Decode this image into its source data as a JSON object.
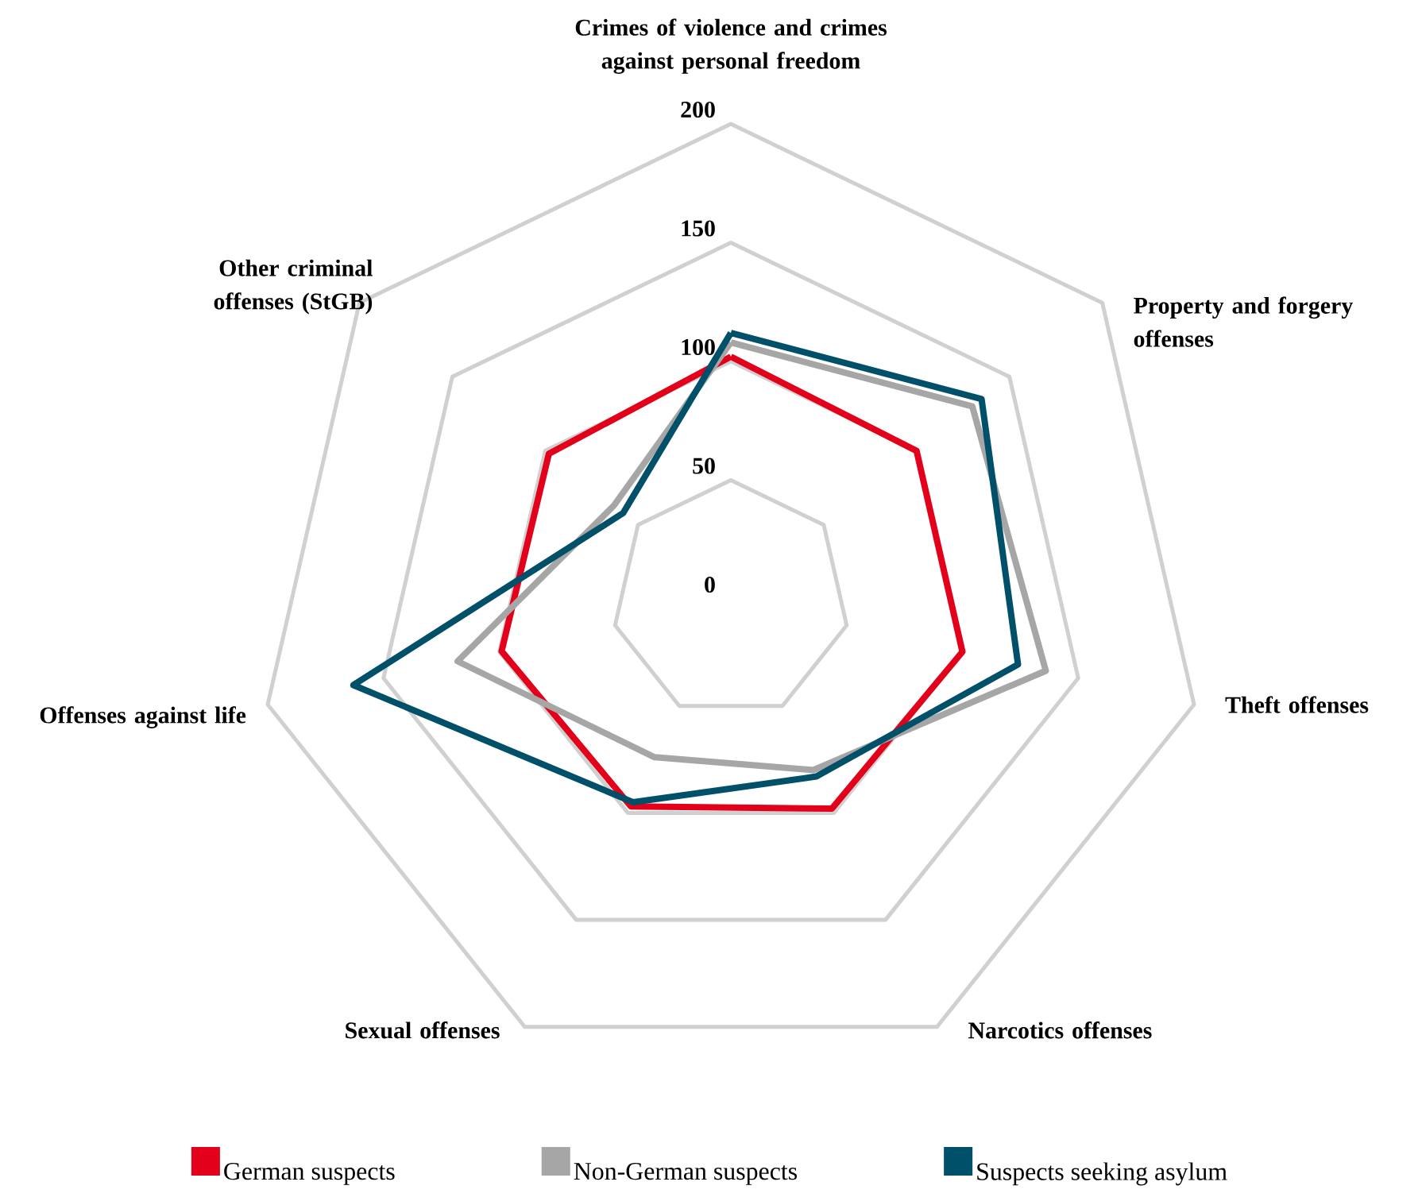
{
  "chart_data": {
    "type": "radar",
    "categories": [
      "Crimes of violence and crimes against personal freedom",
      "Property and forgery offenses",
      "Theft offenses",
      "Narcotics offenses",
      "Sexual offenses",
      "Offenses against life",
      "Other criminal offenses (StGB)"
    ],
    "series": [
      {
        "name": "German suspects",
        "color": "#e2001a",
        "values": [
          102,
          100,
          100,
          98,
          97,
          99,
          98
        ]
      },
      {
        "name": "Non-German suspects",
        "color": "#a6a6a6",
        "values": [
          108,
          130,
          136,
          80,
          74,
          118,
          63
        ]
      },
      {
        "name": "Suspects seeking asylum",
        "color": "#00506a",
        "values": [
          112,
          135,
          124,
          83,
          95,
          163,
          58
        ]
      }
    ],
    "ylim": [
      0,
      200
    ],
    "yticks": [
      0,
      50,
      100,
      150,
      200
    ],
    "grid": true,
    "legend": "bottom"
  }
}
